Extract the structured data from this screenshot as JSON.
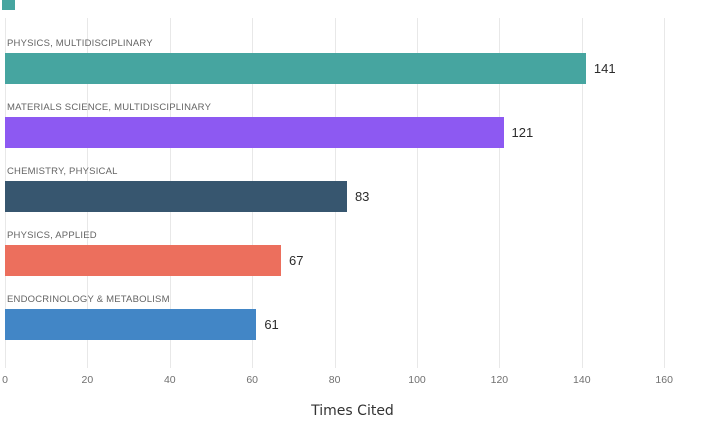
{
  "chart_data": {
    "type": "bar",
    "orientation": "horizontal",
    "xlabel": "Times Cited",
    "categories": [
      "PHYSICS, MULTIDISCIPLINARY",
      "MATERIALS SCIENCE, MULTIDISCIPLINARY",
      "CHEMISTRY, PHYSICAL",
      "PHYSICS, APPLIED",
      "ENDOCRINOLOGY & METABOLISM"
    ],
    "values": [
      141,
      121,
      83,
      67,
      61
    ],
    "bar_colors": [
      "#46a5a0",
      "#8d59f2",
      "#37566f",
      "#ec6f5d",
      "#4286c6"
    ],
    "x_ticks": [
      0,
      20,
      40,
      60,
      80,
      100,
      120,
      140,
      160
    ],
    "xlim": [
      0,
      170
    ],
    "grid": true,
    "legend": "none",
    "value_labels_shown": true
  },
  "colors": {
    "background": "#ffffff",
    "gridline": "#e8e8e8",
    "category_label": "#646464",
    "value_label": "#2b2b2b",
    "tick_label": "#707070",
    "axis_title": "#333333",
    "corner_swatch": "#46a5a0"
  }
}
